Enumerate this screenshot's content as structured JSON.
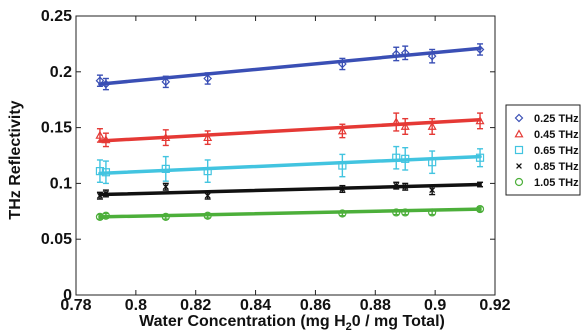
{
  "chart_data": {
    "type": "scatter",
    "title": "",
    "xlabel": "Water Concentration (mg H₂0 / mg Total)",
    "xlabel_parts": {
      "before": "Water Concentration (mg H",
      "subscript": "2",
      "after": "0 / mg Total)"
    },
    "ylabel": "THz Reflectivity",
    "xlim": [
      0.78,
      0.92
    ],
    "ylim": [
      0,
      0.25
    ],
    "x_ticks": [
      "0.78",
      "0.8",
      "0.82",
      "0.84",
      "0.86",
      "0.88",
      "0.9",
      "0.92"
    ],
    "y_ticks": [
      "0",
      "0.05",
      "0.1",
      "0.15",
      "0.2",
      "0.25"
    ],
    "x": [
      0.788,
      0.79,
      0.81,
      0.824,
      0.869,
      0.887,
      0.89,
      0.899,
      0.915
    ],
    "legend_position": "right",
    "grid": false,
    "series": [
      {
        "name": "0.25 THz",
        "color": "#3a4fb5",
        "marker": "diamond",
        "values": [
          0.192,
          0.189,
          0.191,
          0.194,
          0.207,
          0.216,
          0.217,
          0.214,
          0.22
        ],
        "errors": [
          0.005,
          0.005,
          0.005,
          0.005,
          0.005,
          0.006,
          0.006,
          0.006,
          0.005
        ],
        "fit": [
          0.189,
          0.221
        ]
      },
      {
        "name": "0.45 THz",
        "color": "#e53935",
        "marker": "triangle",
        "values": [
          0.143,
          0.139,
          0.141,
          0.141,
          0.147,
          0.155,
          0.151,
          0.151,
          0.156
        ],
        "errors": [
          0.006,
          0.006,
          0.007,
          0.006,
          0.006,
          0.008,
          0.007,
          0.007,
          0.007
        ],
        "fit": [
          0.138,
          0.157
        ]
      },
      {
        "name": "0.65 THz",
        "color": "#42c4e0",
        "marker": "square",
        "values": [
          0.111,
          0.11,
          0.113,
          0.111,
          0.116,
          0.123,
          0.122,
          0.119,
          0.123
        ],
        "errors": [
          0.01,
          0.01,
          0.011,
          0.01,
          0.01,
          0.01,
          0.01,
          0.01,
          0.008
        ],
        "fit": [
          0.109,
          0.124
        ]
      },
      {
        "name": "0.85 THz",
        "color": "#111111",
        "marker": "x",
        "values": [
          0.089,
          0.091,
          0.097,
          0.089,
          0.095,
          0.098,
          0.097,
          0.094,
          0.099
        ],
        "errors": [
          0.003,
          0.003,
          0.003,
          0.003,
          0.003,
          0.003,
          0.003,
          0.004,
          0.002
        ],
        "fit": [
          0.09,
          0.099
        ]
      },
      {
        "name": "1.05 THz",
        "color": "#4caf3a",
        "marker": "circle",
        "values": [
          0.07,
          0.071,
          0.07,
          0.071,
          0.073,
          0.074,
          0.074,
          0.074,
          0.077
        ],
        "errors": [
          0.002,
          0.002,
          0.002,
          0.002,
          0.002,
          0.002,
          0.002,
          0.002,
          0.002
        ],
        "fit": [
          0.07,
          0.077
        ]
      }
    ]
  }
}
